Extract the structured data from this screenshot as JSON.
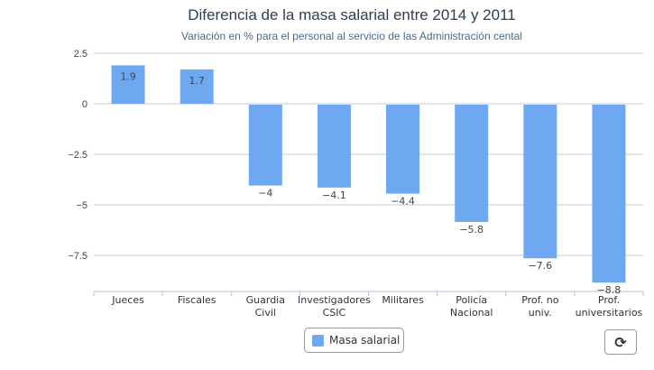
{
  "chart_data": {
    "type": "bar",
    "title": "Diferencia de la masa salarial entre 2014 y 2011",
    "subtitle": "Variación en % para el personal al servicio de las Administración cental",
    "categories": [
      [
        "Jueces"
      ],
      [
        "Fiscales"
      ],
      [
        "Guardia",
        "Civil"
      ],
      [
        "Investigadores",
        "CSIC"
      ],
      [
        "Militares"
      ],
      [
        "Policía",
        "Nacional"
      ],
      [
        "Prof. no",
        "univ."
      ],
      [
        "Prof.",
        "universitarios"
      ]
    ],
    "series": [
      {
        "name": "Masa salarial",
        "values": [
          1.9,
          1.7,
          -4,
          -4.1,
          -4.4,
          -5.8,
          -7.6,
          -8.8
        ],
        "color": "#6ea8f0"
      }
    ],
    "value_labels": [
      "1.9",
      "1.7",
      "−4",
      "−4.1",
      "−4.4",
      "−5.8",
      "−7.6",
      "−8.8"
    ],
    "yticks": [
      2.5,
      0,
      -2.5,
      -5,
      -7.5
    ],
    "ytick_labels": [
      "2.5",
      "0",
      "−2.5",
      "−5",
      "−7.5"
    ],
    "ylim": [
      -9.2,
      2.5
    ],
    "grid": true,
    "legend": "bottom-center"
  },
  "toolbar": {
    "refresh_icon": "refresh-icon"
  }
}
